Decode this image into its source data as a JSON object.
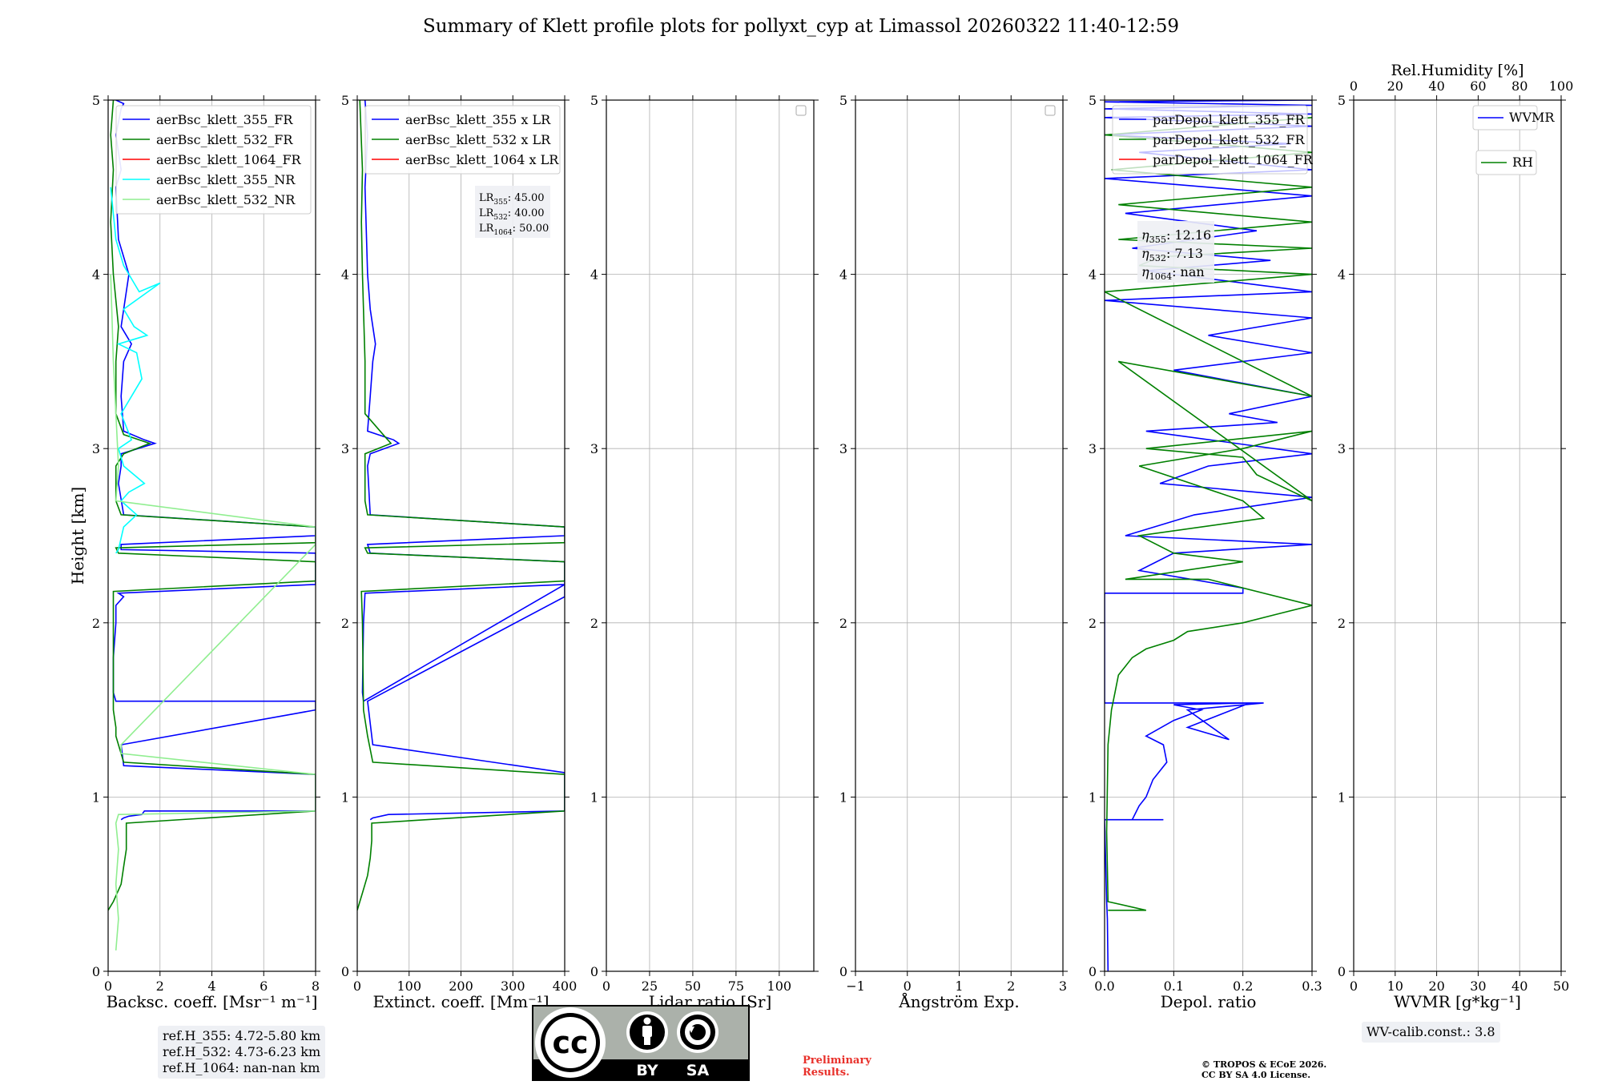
{
  "title": "Summary of Klett profile plots for pollyxt_cyp at Limassol 20260322 11:40-12:59",
  "ylabel": "Height [km]",
  "chart_data": [
    {
      "id": "bsc",
      "type": "line",
      "xlabel": "Backsc. coeff. [Msr⁻¹ m⁻¹]",
      "xlim": [
        0,
        8
      ],
      "xticks": [
        0,
        2,
        4,
        6,
        8
      ],
      "ylim": [
        0,
        5
      ],
      "yticks": [
        0,
        1,
        2,
        3,
        4,
        5
      ],
      "grid": true,
      "legend_position": "top-right",
      "series": [
        {
          "name": "aerBsc_klett_355_FR",
          "color": "#0000ff",
          "x": [
            0.5,
            0.6,
            0.8,
            1.3,
            1.4,
            8,
            8,
            0.6,
            0.5,
            8,
            8,
            0.3,
            0.2,
            0.2,
            0.3,
            0.3,
            0.6,
            0.4,
            8,
            8,
            0.5,
            0.5,
            8,
            8,
            0.6,
            0.4,
            0.5,
            0.5,
            1.8,
            1.4,
            0.6,
            0.5,
            0.6,
            0.9,
            0.5,
            0.8,
            0.4,
            0.3,
            0.5,
            0.3,
            0.5,
            0.6,
            0.3
          ],
          "y": [
            0.87,
            0.88,
            0.89,
            0.9,
            0.92,
            0.92,
            1.13,
            1.18,
            1.3,
            1.5,
            1.55,
            1.55,
            1.6,
            1.8,
            2.0,
            2.1,
            2.15,
            2.17,
            2.22,
            2.4,
            2.42,
            2.45,
            2.5,
            2.55,
            2.62,
            2.8,
            2.9,
            2.97,
            3.03,
            3.05,
            3.1,
            3.3,
            3.5,
            3.6,
            3.7,
            4.0,
            4.2,
            4.5,
            4.6,
            4.8,
            4.95,
            4.98,
            5.0
          ]
        },
        {
          "name": "aerBsc_klett_532_FR",
          "color": "#008000",
          "x": [
            0.0,
            0.2,
            0.5,
            0.6,
            0.7,
            0.7,
            8,
            8,
            0.6,
            0.4,
            0.3,
            0.3,
            0.2,
            0.2,
            8,
            8,
            0.4,
            0.3,
            8,
            8,
            0.5,
            0.3,
            0.3,
            0.6,
            1.6,
            0.6,
            0.3,
            0.3,
            0.4,
            0.2,
            0.1,
            0.2,
            0.1,
            0.2
          ],
          "y": [
            0.35,
            0.4,
            0.5,
            0.6,
            0.7,
            0.85,
            0.92,
            1.13,
            1.2,
            1.3,
            1.35,
            1.4,
            1.5,
            2.18,
            2.24,
            2.35,
            2.4,
            2.43,
            2.46,
            2.55,
            2.62,
            2.7,
            2.9,
            2.97,
            3.03,
            3.08,
            3.2,
            3.5,
            3.7,
            4.0,
            4.3,
            4.6,
            4.8,
            5.0
          ]
        },
        {
          "name": "aerBsc_klett_1064_FR",
          "color": "#ff0000",
          "x": [],
          "y": []
        },
        {
          "name": "aerBsc_klett_355_NR",
          "color": "#00ffff",
          "x": [
            0.3,
            0.4,
            0.6,
            1.1,
            0.5,
            0.8,
            1.4,
            0.6,
            0.4,
            0.9,
            0.5,
            1.3,
            1.1,
            0.4,
            1.5,
            1.0,
            0.6,
            2.0,
            1.2,
            0.8,
            0.6,
            0.3,
            0.1
          ],
          "y": [
            2.4,
            2.42,
            2.55,
            2.62,
            2.7,
            2.75,
            2.8,
            2.9,
            3.0,
            3.05,
            3.2,
            3.4,
            3.55,
            3.6,
            3.65,
            3.7,
            3.8,
            3.95,
            3.9,
            4.0,
            4.05,
            4.2,
            4.5
          ]
        },
        {
          "name": "aerBsc_klett_532_NR",
          "color": "#90ee90",
          "x": [
            0.3,
            0.4,
            0.3,
            0.4,
            0.3,
            0.4,
            8,
            8,
            0.5,
            0.5,
            8,
            8,
            0.3,
            0.4,
            0.3,
            0.2,
            0.1
          ],
          "y": [
            0.12,
            0.3,
            0.5,
            0.7,
            0.85,
            0.9,
            0.92,
            1.13,
            1.25,
            1.3,
            2.45,
            2.55,
            2.7,
            2.9,
            3.2,
            3.5,
            4.0
          ]
        }
      ]
    },
    {
      "id": "ext",
      "type": "line",
      "xlabel": "Extinct. coeff. [Mm⁻¹]",
      "xlim": [
        0,
        400
      ],
      "xticks": [
        0,
        100,
        200,
        300,
        400
      ],
      "ylim": [
        0,
        5
      ],
      "yticks": [
        0,
        1,
        2,
        3,
        4,
        5
      ],
      "grid": true,
      "legend_position": "top-right",
      "series": [
        {
          "name": "aerBsc_klett_355 x LR",
          "color": "#0000ff",
          "x": [
            25,
            30,
            60,
            400,
            400,
            30,
            20,
            400,
            400,
            15,
            12,
            10,
            12,
            400,
            400,
            25,
            20,
            400,
            400,
            25,
            20,
            25,
            80,
            70,
            20,
            25,
            30,
            35,
            25,
            20,
            15,
            20,
            15
          ],
          "y": [
            0.87,
            0.88,
            0.9,
            0.92,
            1.14,
            1.3,
            1.55,
            2.15,
            2.22,
            2.17,
            2.0,
            1.6,
            1.55,
            2.22,
            2.35,
            2.4,
            2.45,
            2.5,
            2.55,
            2.62,
            2.9,
            2.97,
            3.03,
            3.05,
            3.1,
            3.3,
            3.5,
            3.6,
            3.8,
            4.0,
            4.5,
            4.8,
            5.0
          ]
        },
        {
          "name": "aerBsc_klett_532 x LR",
          "color": "#008000",
          "x": [
            0,
            10,
            20,
            25,
            28,
            28,
            400,
            400,
            30,
            20,
            12,
            10,
            8,
            400,
            400,
            20,
            15,
            400,
            400,
            20,
            15,
            15,
            65,
            50,
            15,
            15,
            10,
            8,
            10,
            5
          ],
          "y": [
            0.35,
            0.45,
            0.55,
            0.65,
            0.75,
            0.85,
            0.92,
            1.13,
            1.2,
            1.35,
            1.5,
            2.0,
            2.18,
            2.24,
            2.35,
            2.4,
            2.43,
            2.46,
            2.55,
            2.62,
            2.7,
            2.97,
            3.03,
            3.08,
            3.2,
            3.5,
            4.0,
            4.3,
            4.6,
            5.0
          ]
        },
        {
          "name": "aerBsc_klett_1064 x LR",
          "color": "#ff0000",
          "x": [],
          "y": []
        }
      ],
      "annotation": {
        "lines": [
          {
            "label": "LR",
            "sub": "355",
            "value": ": 45.00"
          },
          {
            "label": "LR",
            "sub": "532",
            "value": ": 40.00"
          },
          {
            "label": "LR",
            "sub": "1064",
            "value": ": 50.00"
          }
        ]
      }
    },
    {
      "id": "lr",
      "type": "line",
      "xlabel": "Lidar ratio [Sr]",
      "xlim": [
        0,
        120
      ],
      "xticks": [
        0,
        25,
        50,
        75,
        100
      ],
      "ylim": [
        0,
        5
      ],
      "yticks": [
        0,
        1,
        2,
        3,
        4,
        5
      ],
      "grid": true,
      "series": []
    },
    {
      "id": "ang",
      "type": "line",
      "xlabel": "Ångström Exp.",
      "xlim": [
        -1,
        3
      ],
      "xticks": [
        -1,
        0,
        1,
        2,
        3
      ],
      "xtick_labels": [
        "−1",
        "0",
        "1",
        "2",
        "3"
      ],
      "ylim": [
        0,
        5
      ],
      "yticks": [
        0,
        1,
        2,
        3,
        4,
        5
      ],
      "grid": true,
      "series": []
    },
    {
      "id": "depol",
      "type": "line",
      "xlabel": "Depol. ratio",
      "xlim": [
        0,
        0.3
      ],
      "xticks": [
        0,
        0.1,
        0.2,
        0.3
      ],
      "xtick_labels": [
        "0.0",
        "0.1",
        "0.2",
        "0.3"
      ],
      "ylim": [
        0,
        5
      ],
      "yticks": [
        0,
        1,
        2,
        3,
        4,
        5
      ],
      "grid": true,
      "legend_position": "top-right",
      "series": [
        {
          "name": "parDepol_klett_355_FR",
          "color": "#0000ff",
          "x": [
            0.005,
            0.004,
            0.003,
            0.0,
            0.085,
            0.04,
            0.05,
            0.06,
            0.07,
            0.09,
            0.085,
            0.06,
            0.1,
            0.14,
            0.1,
            0.21,
            0.12,
            0.18,
            0.12,
            0.23,
            0.0,
            0.0,
            0.2,
            0.2,
            0.05,
            0.1,
            0.3,
            0.03,
            0.13,
            0.3,
            0.08,
            0.15,
            0.3,
            0.06,
            0.25,
            0.18,
            0.3,
            0.1,
            0.3,
            0.15,
            0.3,
            0.0,
            0.3,
            0.06,
            0.24,
            0.04,
            0.22,
            0.03,
            0.3,
            0.0,
            0.3,
            0.05,
            0.27,
            0.0,
            0.3,
            0.0,
            0.3,
            0.0,
            0.3,
            0.0,
            0.3
          ],
          "y": [
            0.0,
            0.3,
            0.4,
            0.87,
            0.87,
            0.87,
            0.95,
            1.0,
            1.1,
            1.2,
            1.3,
            1.35,
            1.44,
            1.5,
            1.53,
            1.54,
            1.4,
            1.33,
            1.5,
            1.54,
            1.54,
            2.17,
            2.17,
            2.2,
            2.3,
            2.4,
            2.45,
            2.5,
            2.62,
            2.72,
            2.8,
            2.9,
            2.97,
            3.1,
            3.15,
            3.2,
            3.3,
            3.45,
            3.55,
            3.65,
            3.75,
            3.85,
            3.9,
            4.02,
            4.08,
            4.15,
            4.25,
            4.35,
            4.45,
            4.55,
            4.6,
            4.7,
            4.75,
            4.8,
            4.85,
            4.9,
            4.92,
            4.95,
            4.97,
            4.99,
            5.0
          ]
        },
        {
          "name": "parDepol_klett_532_FR",
          "color": "#008000",
          "x": [
            0.005,
            0.06,
            0.005,
            0.003,
            0.005,
            0.01,
            0.015,
            0.02,
            0.03,
            0.04,
            0.06,
            0.1,
            0.12,
            0.2,
            0.25,
            0.3,
            0.15,
            0.03,
            0.2,
            0.1,
            0.05,
            0.23,
            0.2,
            0.05,
            0.2,
            0.3,
            0.06,
            0.2,
            0.22,
            0.3,
            0.02,
            0.3,
            0.0,
            0.3,
            0.05,
            0.08,
            0.3,
            0.02,
            0.3,
            0.02,
            0.3,
            0.01,
            0.3,
            0.0,
            0.3
          ],
          "y": [
            0.35,
            0.35,
            0.4,
            0.8,
            1.3,
            1.5,
            1.6,
            1.7,
            1.75,
            1.8,
            1.85,
            1.9,
            1.95,
            2.0,
            2.05,
            2.1,
            2.25,
            2.25,
            2.35,
            2.4,
            2.5,
            2.6,
            2.7,
            2.9,
            3.0,
            3.1,
            3.0,
            2.95,
            2.85,
            2.7,
            3.5,
            3.3,
            3.9,
            4.0,
            4.05,
            4.1,
            4.15,
            4.2,
            4.3,
            4.4,
            4.5,
            4.6,
            4.7,
            4.8,
            4.9
          ]
        },
        {
          "name": "parDepol_klett_1064_FR",
          "color": "#ff0000",
          "x": [],
          "y": []
        }
      ],
      "annotation": {
        "lines": [
          {
            "label": "η",
            "sub": "355",
            "value": ": 12.16"
          },
          {
            "label": "η",
            "sub": "532",
            "value": ": 7.13"
          },
          {
            "label": "η",
            "sub": "1064",
            "value": ": nan"
          }
        ]
      }
    },
    {
      "id": "wv",
      "type": "line",
      "xlabel": "WVMR [g*kg⁻¹]",
      "xlim": [
        0,
        50
      ],
      "xticks": [
        0,
        10,
        20,
        30,
        40,
        50
      ],
      "ylim": [
        0,
        5
      ],
      "yticks": [
        0,
        1,
        2,
        3,
        4,
        5
      ],
      "grid": true,
      "top_axis": {
        "label": "Rel.Humidity [%]",
        "xlim": [
          0,
          100
        ],
        "xticks": [
          0,
          20,
          40,
          60,
          80,
          100
        ]
      },
      "series": [
        {
          "name": "WVMR",
          "color": "#0000ff",
          "x": [],
          "y": []
        },
        {
          "name": "RH",
          "color": "#008000",
          "x": [],
          "y": []
        }
      ]
    }
  ],
  "ref_heights": [
    "ref.H_355: 4.72-5.80 km",
    "ref.H_532: 4.73-6.23 km",
    "ref.H_1064: nan-nan km"
  ],
  "wv_calib": "WV-calib.const.: 3.8",
  "preliminary": "Preliminary Results.",
  "copyright": [
    "© TROPOS & ECoE 2026.",
    "CC BY SA 4.0 License."
  ],
  "license_logo": {
    "by": "BY",
    "sa": "SA",
    "cc": "cc"
  }
}
